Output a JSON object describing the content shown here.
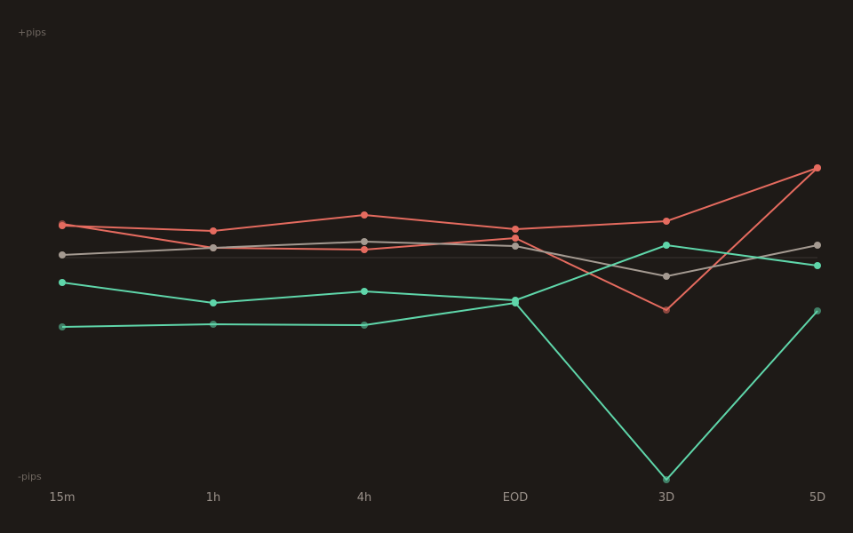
{
  "chart_data": {
    "type": "line",
    "y_top_label": "+pips",
    "y_bottom_label": "-pips",
    "categories": [
      "15m",
      "1h",
      "4h",
      "EOD",
      "3D",
      "5D"
    ],
    "ylim": [
      -100,
      100
    ],
    "zero_line": true,
    "grid": false,
    "colors": {
      "background": "#1e1a17",
      "red": "#e56b5f",
      "green": "#5fd6aa",
      "gray": "#a49a91",
      "zero": "#3a3431",
      "axis_text": "#9a918a"
    },
    "series": [
      {
        "color": "red",
        "dim_points": [],
        "values": [
          14.4,
          12.0,
          19.2,
          12.8,
          16.4,
          40.4
        ]
      },
      {
        "color": "red",
        "dim_points": [
          0,
          4
        ],
        "values": [
          15.2,
          4.4,
          3.6,
          8.8,
          -23.6,
          40.4
        ]
      },
      {
        "color": "gray",
        "dim_points": [],
        "values": [
          1.2,
          4.4,
          7.2,
          5.2,
          -8.4,
          5.6
        ]
      },
      {
        "color": "green",
        "dim_points": [],
        "values": [
          -11.2,
          -20.4,
          -15.2,
          -19.2,
          5.6,
          -3.6
        ]
      },
      {
        "color": "green",
        "dim_points": [
          0,
          1,
          2,
          4,
          5
        ],
        "values": [
          -31.2,
          -30.0,
          -30.4,
          -20.4,
          -100.0,
          -24.0
        ]
      }
    ]
  }
}
